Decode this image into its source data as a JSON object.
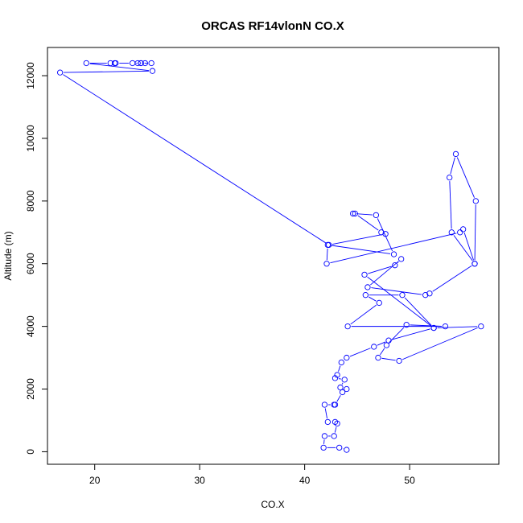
{
  "chart_data": {
    "type": "line",
    "title": "ORCAS RF14vlonN CO.X",
    "xlabel": "CO.X",
    "ylabel": "Altitude (m)",
    "xlim": [
      15.5,
      58.5
    ],
    "ylim": [
      -400,
      12900
    ],
    "x_ticks": [
      20,
      30,
      40,
      50
    ],
    "y_ticks": [
      0,
      2000,
      4000,
      6000,
      8000,
      10000,
      12000
    ],
    "marker": "open-circle",
    "grid": false,
    "legend": "none",
    "color": "#0000ff",
    "series": [
      {
        "x": [
          44.0,
          43.3,
          41.8,
          41.9,
          42.8,
          43.1,
          42.9,
          42.2,
          41.9,
          42.8,
          42.9,
          43.6,
          44.0,
          43.4,
          43.8,
          42.9,
          43.1,
          43.5,
          44.0,
          46.6,
          48.0,
          52.3,
          56.8,
          49.0,
          47.0,
          47.8,
          49.7,
          53.4,
          44.1,
          47.1,
          45.8,
          49.3,
          52.3,
          45.7,
          48.6,
          49.2,
          46.0,
          51.5,
          51.9,
          56.2,
          54.0,
          53.8,
          54.4,
          56.3,
          56.2,
          55.1,
          54.8,
          42.1,
          42.2,
          48.5,
          46.8,
          44.6,
          44.8,
          47.3,
          47.7,
          42.3,
          16.7,
          25.5,
          19.2,
          21.5,
          21.9,
          22.0,
          23.6,
          24.4,
          24.8,
          24.1,
          24.4,
          25.4
        ],
        "y": [
          60,
          130,
          130,
          500,
          500,
          900,
          950,
          950,
          1500,
          1500,
          1500,
          1900,
          2000,
          2050,
          2300,
          2350,
          2450,
          2850,
          3000,
          3350,
          3550,
          3950,
          4000,
          2900,
          3000,
          3400,
          4050,
          4000,
          4000,
          4750,
          5000,
          5000,
          3950,
          5650,
          5950,
          6150,
          5250,
          5000,
          5050,
          6000,
          7000,
          8750,
          9500,
          8000,
          6000,
          7100,
          7000,
          6000,
          6600,
          6300,
          7550,
          7600,
          7600,
          7000,
          6950,
          6600,
          12100,
          12150,
          12400,
          12400,
          12400,
          12400,
          12400,
          12400,
          12400,
          12400,
          12400,
          12400
        ]
      }
    ]
  }
}
